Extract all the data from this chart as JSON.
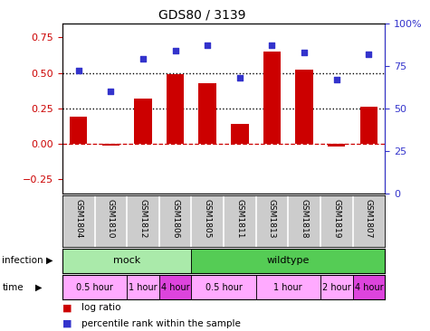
{
  "title": "GDS80 / 3139",
  "samples": [
    "GSM1804",
    "GSM1810",
    "GSM1812",
    "GSM1806",
    "GSM1805",
    "GSM1811",
    "GSM1813",
    "GSM1818",
    "GSM1819",
    "GSM1807"
  ],
  "log_ratio": [
    0.19,
    -0.01,
    0.32,
    0.49,
    0.43,
    0.14,
    0.65,
    0.52,
    -0.02,
    0.26
  ],
  "percentile": [
    72,
    60,
    79,
    84,
    87,
    68,
    87,
    83,
    67,
    82
  ],
  "bar_color": "#cc0000",
  "dot_color": "#3333cc",
  "ylim_left": [
    -0.35,
    0.85
  ],
  "ylim_right": [
    0,
    100
  ],
  "yticks_left": [
    -0.25,
    0,
    0.25,
    0.5,
    0.75
  ],
  "yticks_right": [
    0,
    25,
    50,
    75,
    100
  ],
  "hlines": [
    0.25,
    0.5
  ],
  "dashed_hline": 0.0,
  "infection_groups": [
    {
      "label": "mock",
      "start": 0,
      "end": 4,
      "color": "#aaeaaa"
    },
    {
      "label": "wildtype",
      "start": 4,
      "end": 10,
      "color": "#55cc55"
    }
  ],
  "time_groups": [
    {
      "label": "0.5 hour",
      "start": 0,
      "end": 2,
      "color": "#ffaaff"
    },
    {
      "label": "1 hour",
      "start": 2,
      "end": 3,
      "color": "#ffaaff"
    },
    {
      "label": "4 hour",
      "start": 3,
      "end": 4,
      "color": "#dd44dd"
    },
    {
      "label": "0.5 hour",
      "start": 4,
      "end": 6,
      "color": "#ffaaff"
    },
    {
      "label": "1 hour",
      "start": 6,
      "end": 8,
      "color": "#ffaaff"
    },
    {
      "label": "2 hour",
      "start": 8,
      "end": 9,
      "color": "#ffaaff"
    },
    {
      "label": "4 hour",
      "start": 9,
      "end": 10,
      "color": "#dd44dd"
    }
  ],
  "legend_items": [
    {
      "label": "log ratio",
      "color": "#cc0000"
    },
    {
      "label": "percentile rank within the sample",
      "color": "#3333cc"
    }
  ],
  "left_tick_color": "#cc0000",
  "right_tick_color": "#3333cc",
  "sample_bg_color": "#cccccc",
  "bar_width": 0.55
}
